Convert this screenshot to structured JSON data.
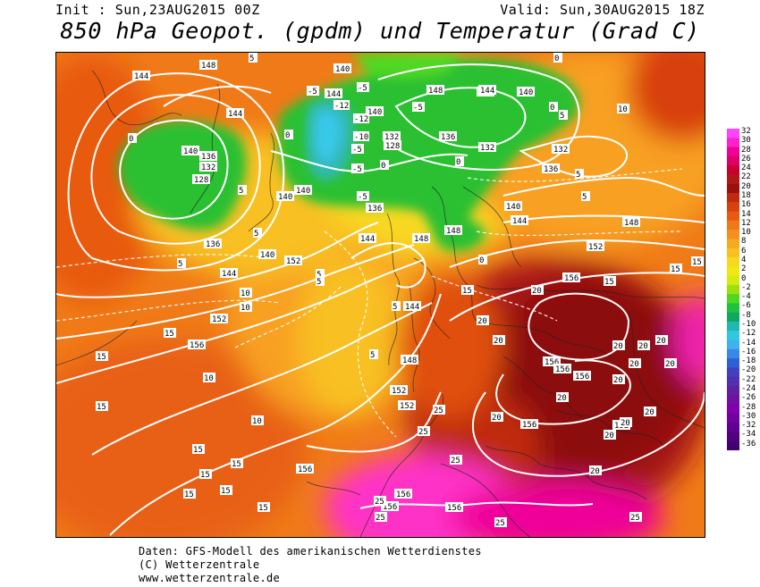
{
  "header": {
    "init": "Init : Sun,23AUG2015 00Z",
    "valid": "Valid: Sun,30AUG2015 18Z",
    "title": "850 hPa Geopot. (gpdm) und Temperatur (Grad C)"
  },
  "colorbar": {
    "labels": [
      "32",
      "30",
      "28",
      "26",
      "24",
      "22",
      "20",
      "18",
      "16",
      "14",
      "12",
      "10",
      "8",
      "6",
      "4",
      "2",
      "0",
      "-2",
      "-4",
      "-6",
      "-8",
      "-10",
      "-12",
      "-14",
      "-16",
      "-18",
      "-20",
      "-22",
      "-24",
      "-26",
      "-28",
      "-30",
      "-32",
      "-34",
      "-36"
    ],
    "colors": [
      "#ff44ff",
      "#ff22cc",
      "#ee0099",
      "#dd0066",
      "#c80030",
      "#b01818",
      "#9a1010",
      "#c02a10",
      "#d84010",
      "#e85a10",
      "#f07818",
      "#f59020",
      "#f7aa20",
      "#f8c020",
      "#f8d820",
      "#f0e810",
      "#d4ec10",
      "#9ce010",
      "#50d820",
      "#20c040",
      "#10a860",
      "#20b8b0",
      "#30c8e0",
      "#40b0f0",
      "#3888e8",
      "#3060d8",
      "#4040c0",
      "#5030b0",
      "#6020a0",
      "#7010a0",
      "#8000b0",
      "#7000a0",
      "#600090",
      "#500080",
      "#400070"
    ]
  },
  "map_labels": {
    "geopotential": [
      "148",
      "144",
      "140",
      "140",
      "144",
      "136",
      "148",
      "144",
      "140",
      "132",
      "128",
      "136",
      "132",
      "140",
      "136",
      "132",
      "144",
      "140",
      "128",
      "136",
      "132",
      "140",
      "140",
      "144",
      "148",
      "148",
      "152",
      "136",
      "140",
      "144",
      "144",
      "148",
      "140",
      "156",
      "144",
      "152",
      "152",
      "156",
      "148",
      "152",
      "152",
      "156",
      "156",
      "156",
      "156",
      "152",
      "156",
      "156",
      "156",
      "156"
    ],
    "temperature": [
      "-5",
      "-5",
      "-12",
      "-12",
      "-5",
      "-5",
      "-5",
      "-10",
      "0",
      "0",
      "0",
      "5",
      "5",
      "5",
      "5",
      "5",
      "5",
      "5",
      "0",
      "-5",
      "0",
      "0",
      "0",
      "5",
      "10",
      "10",
      "10",
      "5",
      "5",
      "5",
      "10",
      "10",
      "15",
      "15",
      "15",
      "15",
      "15",
      "15",
      "15",
      "15",
      "15",
      "15",
      "15",
      "20",
      "20",
      "20",
      "20",
      "20",
      "20",
      "20",
      "20",
      "20",
      "20",
      "20",
      "25",
      "25",
      "25",
      "25",
      "25",
      "25",
      "25",
      "20",
      "20",
      "20",
      "20",
      "15",
      "15"
    ]
  },
  "footer": {
    "line1": "Daten: GFS-Modell des amerikanischen Wetterdienstes",
    "line2": "(C) Wetterzentrale",
    "line3": "www.wetterzentrale.de"
  }
}
